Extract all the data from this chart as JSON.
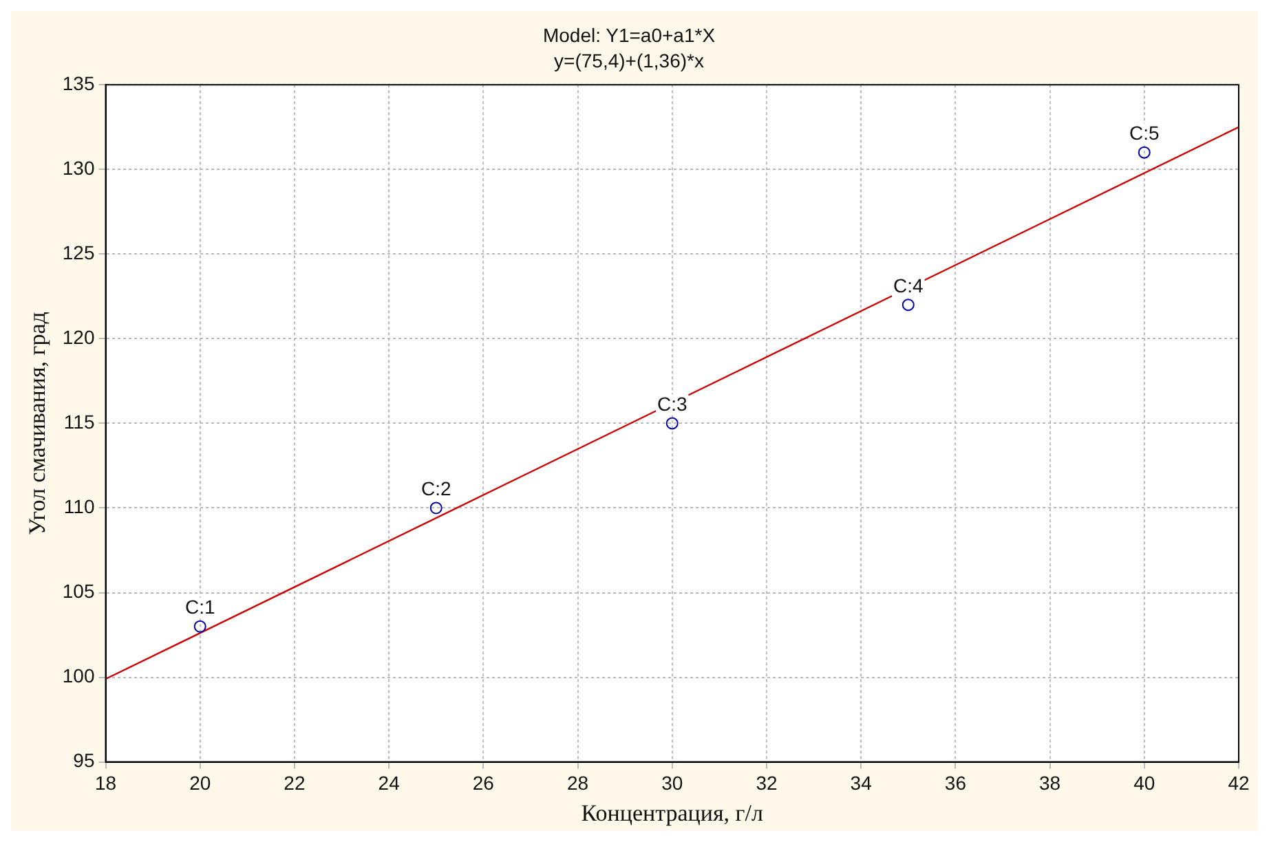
{
  "chart_data": {
    "type": "scatter",
    "title": "Model: Y1=a0+a1*X",
    "subtitle": "y=(75,4)+(1,36)*x",
    "xlabel": "Концентрация, г/л",
    "ylabel": "Угол смачивания, град",
    "series": [
      {
        "color": "#0000aa",
        "x": [
          20,
          25,
          30,
          35,
          40
        ],
        "values": [
          103,
          110,
          115,
          122,
          131
        ],
        "marker": "circle"
      },
      {
        "type": "line",
        "color": "#cc0000",
        "x": [
          18,
          42
        ],
        "values": [
          99.9,
          132.5
        ],
        "marker": "none",
        "line_style": "solid"
      }
    ],
    "annotations": [
      {
        "text": "C:1",
        "x": 20,
        "y": 103
      },
      {
        "text": "C:2",
        "x": 25,
        "y": 110
      },
      {
        "text": "C:3",
        "x": 30,
        "y": 115
      },
      {
        "text": "C:4",
        "x": 35,
        "y": 122
      },
      {
        "text": "C:5",
        "x": 40,
        "y": 131
      }
    ],
    "xlim": [
      18,
      42
    ],
    "xticks": [
      18,
      20,
      22,
      24,
      26,
      28,
      30,
      32,
      34,
      36,
      38,
      40,
      42
    ],
    "ylim": [
      95,
      135
    ],
    "yticks": [
      95,
      100,
      105,
      110,
      115,
      120,
      125,
      130,
      135
    ],
    "grid": true,
    "legend": false
  }
}
